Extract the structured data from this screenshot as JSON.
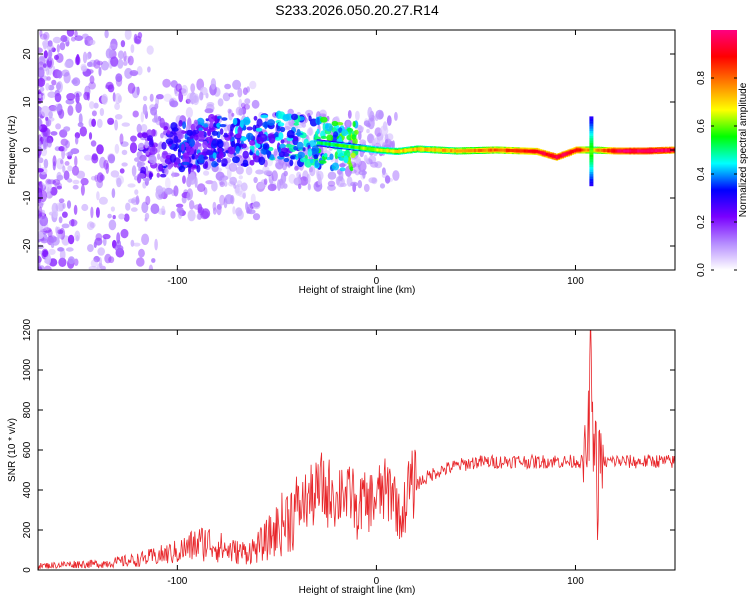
{
  "title": "S233.2026.050.20.27.R14",
  "chart_data": [
    {
      "type": "heatmap",
      "name": "spectrogram",
      "xlabel": "Height of straight line (km)",
      "ylabel": "Frequency (Hz)",
      "xlim": [
        -170,
        150
      ],
      "ylim": [
        -25,
        25
      ],
      "x_ticks": [
        -100,
        0,
        100
      ],
      "y_ticks": [
        -20,
        -10,
        0,
        10,
        20
      ],
      "colorbar": {
        "label": "Normalized spectral amplitude",
        "range": [
          0,
          1
        ],
        "ticks": [
          0.0,
          0.2,
          0.4,
          0.6,
          0.8
        ],
        "tick_labels": [
          "0.0",
          "0.2",
          "0.4",
          "0.6",
          "0.8"
        ],
        "colormap": [
          "#ffffff",
          "#b58cff",
          "#7a00ff",
          "#0000ff",
          "#00ffff",
          "#00ff00",
          "#ffff00",
          "#ff8000",
          "#ff0000",
          "#ff0080"
        ]
      },
      "ridge": [
        {
          "x": -170,
          "f": -1.0,
          "amp": 0.05
        },
        {
          "x": -150,
          "f": -0.8,
          "amp": 0.08
        },
        {
          "x": -130,
          "f": -0.5,
          "amp": 0.15
        },
        {
          "x": -115,
          "f": -1.5,
          "amp": 0.25
        },
        {
          "x": -100,
          "f": 0.5,
          "amp": 0.32
        },
        {
          "x": -90,
          "f": 1.0,
          "amp": 0.35
        },
        {
          "x": -80,
          "f": 2.0,
          "amp": 0.38
        },
        {
          "x": -70,
          "f": 1.5,
          "amp": 0.4
        },
        {
          "x": -60,
          "f": 2.5,
          "amp": 0.42
        },
        {
          "x": -50,
          "f": 3.0,
          "amp": 0.45
        },
        {
          "x": -40,
          "f": 2.0,
          "amp": 0.45
        },
        {
          "x": -30,
          "f": 1.5,
          "amp": 0.5
        },
        {
          "x": -20,
          "f": 1.0,
          "amp": 0.55
        },
        {
          "x": -10,
          "f": 0.5,
          "amp": 0.6
        },
        {
          "x": 0,
          "f": 0.0,
          "amp": 0.65
        },
        {
          "x": 10,
          "f": -0.3,
          "amp": 0.7
        },
        {
          "x": 20,
          "f": 0.2,
          "amp": 0.72
        },
        {
          "x": 40,
          "f": -0.2,
          "amp": 0.75
        },
        {
          "x": 60,
          "f": 0.0,
          "amp": 0.8
        },
        {
          "x": 80,
          "f": -0.3,
          "amp": 0.9
        },
        {
          "x": 90,
          "f": -1.5,
          "amp": 0.95
        },
        {
          "x": 100,
          "f": 0.0,
          "amp": 0.92
        },
        {
          "x": 108,
          "f": 0.0,
          "amp": 0.7
        },
        {
          "x": 120,
          "f": -0.2,
          "amp": 0.95
        },
        {
          "x": 135,
          "f": -0.2,
          "amp": 1.0
        },
        {
          "x": 150,
          "f": 0.0,
          "amp": 0.95
        }
      ],
      "feature_spikes": [
        {
          "x": 108,
          "f_min": -7,
          "f_max": 7
        }
      ]
    },
    {
      "type": "line",
      "name": "snr",
      "xlabel": "Height of straight line (km)",
      "ylabel": "SNR (10 * v/v)",
      "xlim": [
        -170,
        150
      ],
      "ylim": [
        0,
        1200
      ],
      "x_ticks": [
        -100,
        0,
        100
      ],
      "y_ticks": [
        0,
        200,
        400,
        600,
        800,
        1000,
        1200
      ],
      "series": [
        {
          "name": "SNR",
          "color": "#e8262a",
          "x": [
            -170,
            -160,
            -150,
            -140,
            -130,
            -120,
            -110,
            -100,
            -95,
            -90,
            -85,
            -80,
            -75,
            -70,
            -65,
            -60,
            -55,
            -50,
            -45,
            -40,
            -35,
            -30,
            -27,
            -25,
            -22,
            -20,
            -17,
            -15,
            -12,
            -10,
            -7,
            -5,
            -2,
            0,
            3,
            5,
            8,
            10,
            12,
            14,
            16,
            20,
            25,
            30,
            40,
            50,
            60,
            70,
            80,
            90,
            95,
            100,
            104,
            106,
            107,
            108,
            109,
            110,
            111,
            112,
            113,
            115,
            120,
            130,
            140,
            150
          ],
          "values": [
            20,
            25,
            30,
            30,
            40,
            50,
            70,
            90,
            110,
            130,
            140,
            120,
            100,
            90,
            90,
            110,
            150,
            200,
            260,
            300,
            350,
            380,
            420,
            360,
            430,
            320,
            450,
            340,
            400,
            260,
            360,
            320,
            360,
            350,
            400,
            380,
            420,
            330,
            240,
            310,
            400,
            430,
            460,
            490,
            520,
            540,
            540,
            545,
            540,
            545,
            540,
            545,
            540,
            600,
            800,
            1150,
            380,
            900,
            120,
            700,
            500,
            540,
            545,
            540,
            545,
            540
          ]
        }
      ]
    }
  ]
}
